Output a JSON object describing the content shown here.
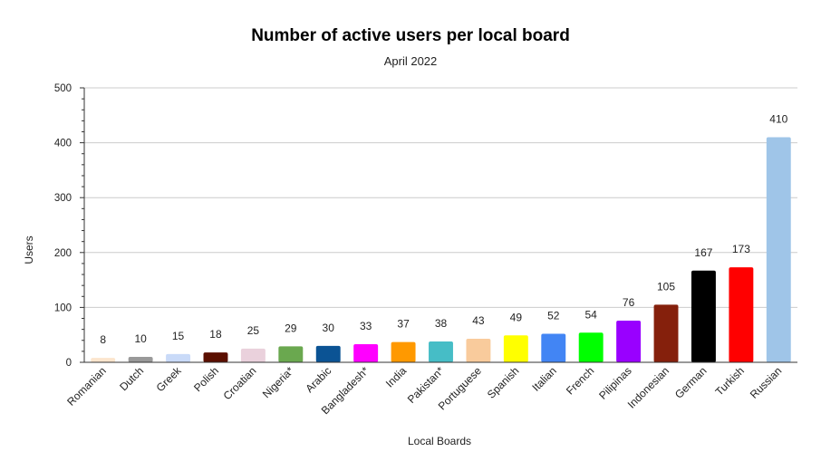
{
  "chart_data": {
    "type": "bar",
    "title": "Number of active users per local board",
    "subtitle": "April 2022",
    "xlabel": "Local Boards",
    "ylabel": "Users",
    "ylim": [
      0,
      500
    ],
    "yticks": [
      0,
      100,
      200,
      300,
      400,
      500
    ],
    "grid": true,
    "legend": "none",
    "categories": [
      "Romanian",
      "Dutch",
      "Greek",
      "Polish",
      "Croatian",
      "Nigeria*",
      "Arabic",
      "Bangladesh*",
      "India",
      "Pakistan*",
      "Portuguese",
      "Spanish",
      "Italian",
      "French",
      "Pilipinas",
      "Indonesian",
      "German",
      "Turkish",
      "Russian"
    ],
    "values": [
      8,
      10,
      15,
      18,
      25,
      29,
      30,
      33,
      37,
      38,
      43,
      49,
      52,
      54,
      76,
      105,
      167,
      173,
      410
    ],
    "colors": [
      "#fce5cd",
      "#999999",
      "#c9daf8",
      "#5b0f00",
      "#ead1dc",
      "#6aa84f",
      "#0b5394",
      "#ff00ff",
      "#ff9900",
      "#46bdc6",
      "#f9cb9c",
      "#ffff00",
      "#4285f4",
      "#00ff00",
      "#9900ff",
      "#85200c",
      "#000000",
      "#ff0000",
      "#9fc5e8"
    ]
  }
}
